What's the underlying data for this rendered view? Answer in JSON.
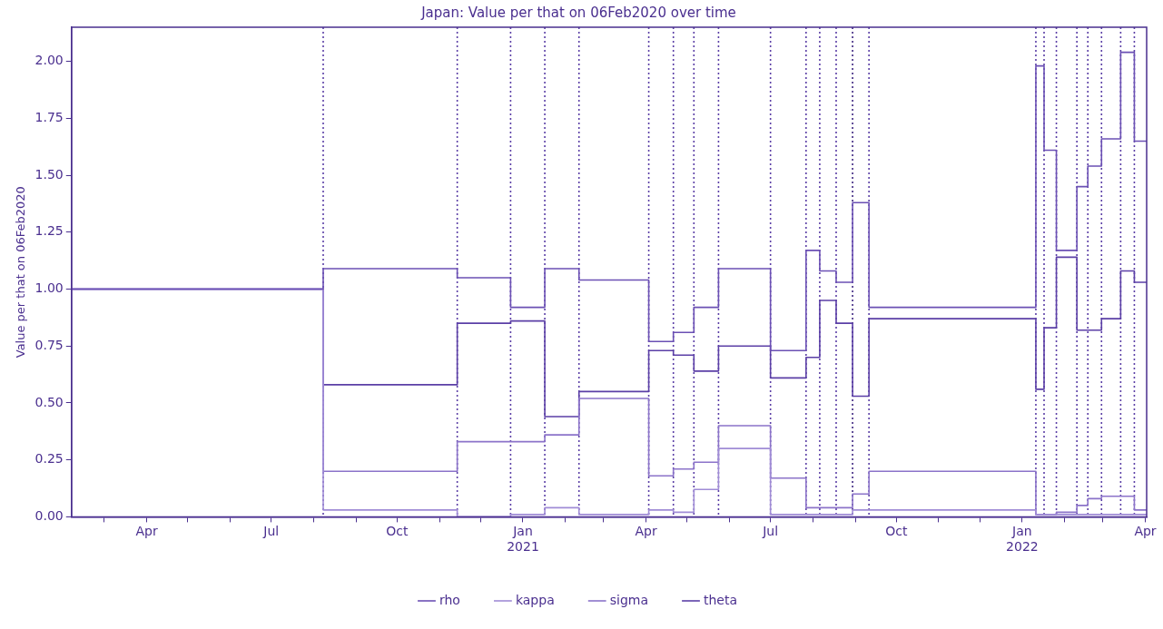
{
  "chart_data": {
    "type": "step",
    "title": "Japan: Value per that on 06Feb2020 over time",
    "ylabel": "Value per that on 06Feb2020",
    "x": [
      "2020-02-06",
      "2020-08-08",
      "2020-11-14",
      "2020-12-23",
      "2021-01-17",
      "2021-02-11",
      "2021-04-03",
      "2021-04-21",
      "2021-05-06",
      "2021-05-24",
      "2021-07-01",
      "2021-07-27",
      "2021-08-06",
      "2021-08-18",
      "2021-08-30",
      "2021-09-11",
      "2022-01-11",
      "2022-01-17",
      "2022-01-26",
      "2022-02-10",
      "2022-02-18",
      "2022-02-28",
      "2022-03-14",
      "2022-03-24",
      "2022-04-02"
    ],
    "series": [
      {
        "name": "rho",
        "color": "#6b50b4",
        "values": [
          1.0,
          1.09,
          1.05,
          0.92,
          1.09,
          1.04,
          0.77,
          0.81,
          0.92,
          1.09,
          0.73,
          1.17,
          1.08,
          1.03,
          1.38,
          0.92,
          1.98,
          1.61,
          1.17,
          1.45,
          1.54,
          1.66,
          2.04,
          1.65,
          1.65
        ]
      },
      {
        "name": "kappa",
        "color": "#a08cd6",
        "values": [
          1.0,
          0.03,
          0.0,
          0.01,
          0.04,
          0.01,
          0.03,
          0.02,
          0.12,
          0.3,
          0.01,
          0.01,
          0.01,
          0.01,
          0.03,
          0.03,
          0.01,
          0.01,
          0.01,
          0.01,
          0.01,
          0.01,
          0.01,
          0.01,
          0.01
        ]
      },
      {
        "name": "sigma",
        "color": "#8b73c9",
        "values": [
          1.0,
          0.2,
          0.33,
          0.33,
          0.36,
          0.52,
          0.18,
          0.21,
          0.24,
          0.4,
          0.17,
          0.04,
          0.04,
          0.04,
          0.1,
          0.2,
          0.01,
          0.01,
          0.02,
          0.05,
          0.08,
          0.09,
          0.09,
          0.03,
          0.03
        ]
      },
      {
        "name": "theta",
        "color": "#5b3fa6",
        "values": [
          1.0,
          0.58,
          0.85,
          0.86,
          0.44,
          0.55,
          0.73,
          0.71,
          0.64,
          0.75,
          0.61,
          0.7,
          0.95,
          0.85,
          0.53,
          0.87,
          0.56,
          0.83,
          1.14,
          0.82,
          0.82,
          0.87,
          1.08,
          1.03,
          1.03
        ]
      }
    ],
    "xlim": [
      "2020-02-06",
      "2022-04-02"
    ],
    "xticks": [
      {
        "value": "2020-03-01",
        "label": null
      },
      {
        "value": "2020-04-01",
        "label": "Apr"
      },
      {
        "value": "2020-05-01",
        "label": null
      },
      {
        "value": "2020-06-01",
        "label": null
      },
      {
        "value": "2020-07-01",
        "label": "Jul"
      },
      {
        "value": "2020-08-01",
        "label": null
      },
      {
        "value": "2020-09-01",
        "label": null
      },
      {
        "value": "2020-10-01",
        "label": "Oct"
      },
      {
        "value": "2020-11-01",
        "label": null
      },
      {
        "value": "2020-12-01",
        "label": null
      },
      {
        "value": "2021-01-01",
        "label": "Jan\n2021"
      },
      {
        "value": "2021-02-01",
        "label": null
      },
      {
        "value": "2021-03-01",
        "label": null
      },
      {
        "value": "2021-04-01",
        "label": "Apr"
      },
      {
        "value": "2021-05-01",
        "label": null
      },
      {
        "value": "2021-06-01",
        "label": null
      },
      {
        "value": "2021-07-01",
        "label": "Jul"
      },
      {
        "value": "2021-08-01",
        "label": null
      },
      {
        "value": "2021-09-01",
        "label": null
      },
      {
        "value": "2021-10-01",
        "label": "Oct"
      },
      {
        "value": "2021-11-01",
        "label": null
      },
      {
        "value": "2021-12-01",
        "label": null
      },
      {
        "value": "2022-01-01",
        "label": "Jan\n2022"
      },
      {
        "value": "2022-02-01",
        "label": null
      },
      {
        "value": "2022-03-01",
        "label": null
      },
      {
        "value": "2022-04-01",
        "label": "Apr"
      }
    ],
    "ylim": [
      0,
      2.15
    ],
    "yticks": [
      {
        "value": 0,
        "label": "0.00"
      },
      {
        "value": 0.25,
        "label": "0.25"
      },
      {
        "value": 0.5,
        "label": "0.50"
      },
      {
        "value": 0.75,
        "label": "0.75"
      },
      {
        "value": 1.0,
        "label": "1.00"
      },
      {
        "value": 1.25,
        "label": "1.25"
      },
      {
        "value": 1.5,
        "label": "1.50"
      },
      {
        "value": 1.75,
        "label": "1.75"
      },
      {
        "value": 2.0,
        "label": "2.00"
      }
    ],
    "ref_lines": [
      {
        "axis": "x",
        "value": "2020-08-08",
        "color": "#5b3fa6",
        "line_style": "dotted"
      },
      {
        "axis": "x",
        "value": "2020-11-14",
        "color": "#5b3fa6",
        "line_style": "dotted"
      },
      {
        "axis": "x",
        "value": "2020-12-23",
        "color": "#5b3fa6",
        "line_style": "dotted"
      },
      {
        "axis": "x",
        "value": "2021-01-17",
        "color": "#5b3fa6",
        "line_style": "dotted"
      },
      {
        "axis": "x",
        "value": "2021-02-11",
        "color": "#5b3fa6",
        "line_style": "dotted"
      },
      {
        "axis": "x",
        "value": "2021-04-03",
        "color": "#5b3fa6",
        "line_style": "dotted"
      },
      {
        "axis": "x",
        "value": "2021-04-21",
        "color": "#5b3fa6",
        "line_style": "dotted"
      },
      {
        "axis": "x",
        "value": "2021-05-06",
        "color": "#5b3fa6",
        "line_style": "dotted"
      },
      {
        "axis": "x",
        "value": "2021-05-24",
        "color": "#5b3fa6",
        "line_style": "dotted"
      },
      {
        "axis": "x",
        "value": "2021-07-01",
        "color": "#5b3fa6",
        "line_style": "dotted"
      },
      {
        "axis": "x",
        "value": "2021-07-27",
        "color": "#5b3fa6",
        "line_style": "dotted"
      },
      {
        "axis": "x",
        "value": "2021-08-06",
        "color": "#5b3fa6",
        "line_style": "dotted"
      },
      {
        "axis": "x",
        "value": "2021-08-18",
        "color": "#5b3fa6",
        "line_style": "dotted"
      },
      {
        "axis": "x",
        "value": "2021-08-30",
        "color": "#3d2580",
        "line_style": "dotted"
      },
      {
        "axis": "x",
        "value": "2021-09-11",
        "color": "#5b3fa6",
        "line_style": "dotted"
      },
      {
        "axis": "x",
        "value": "2022-01-11",
        "color": "#5b3fa6",
        "line_style": "dotted"
      },
      {
        "axis": "x",
        "value": "2022-01-17",
        "color": "#5b3fa6",
        "line_style": "dotted"
      },
      {
        "axis": "x",
        "value": "2022-01-26",
        "color": "#5b3fa6",
        "line_style": "dotted"
      },
      {
        "axis": "x",
        "value": "2022-02-10",
        "color": "#5b3fa6",
        "line_style": "dotted"
      },
      {
        "axis": "x",
        "value": "2022-02-18",
        "color": "#5b3fa6",
        "line_style": "dotted"
      },
      {
        "axis": "x",
        "value": "2022-02-28",
        "color": "#5b3fa6",
        "line_style": "dotted"
      },
      {
        "axis": "x",
        "value": "2022-03-14",
        "color": "#5b3fa6",
        "line_style": "dotted"
      },
      {
        "axis": "x",
        "value": "2022-03-24",
        "color": "#5b3fa6",
        "line_style": "dotted"
      }
    ],
    "legend": "bottom",
    "grid": false,
    "marker": "none",
    "line_style": "solid"
  }
}
